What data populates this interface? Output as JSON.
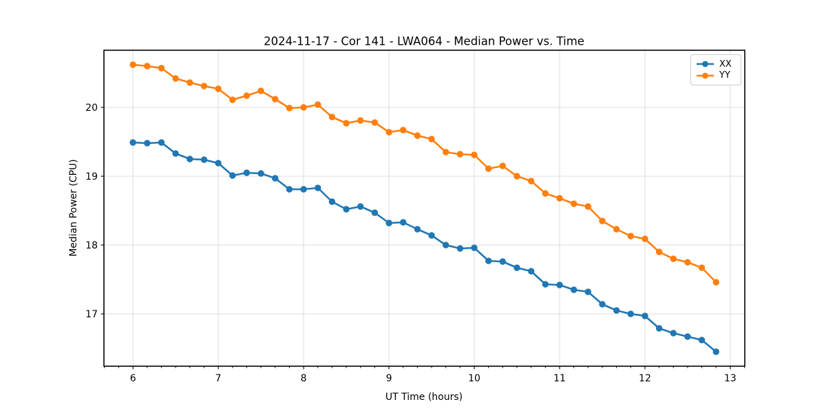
{
  "chart_data": {
    "type": "line",
    "title": "2024-11-17 - Cor 141 - LWA064 - Median Power vs. Time",
    "xlabel": "UT Time (hours)",
    "ylabel": "Median Power (CPU)",
    "xlim": [
      5.66,
      13.17
    ],
    "ylim": [
      16.24,
      20.83
    ],
    "xticks": [
      6,
      7,
      8,
      9,
      10,
      11,
      12,
      13
    ],
    "yticks": [
      17,
      18,
      19,
      20
    ],
    "x_minor_divisions_per_unit": 6,
    "grid": true,
    "legend_position": "upper right",
    "x": [
      6.0,
      6.1667,
      6.3333,
      6.5,
      6.6667,
      6.8333,
      7.0,
      7.1667,
      7.3333,
      7.5,
      7.6667,
      7.8333,
      8.0,
      8.1667,
      8.3333,
      8.5,
      8.6667,
      8.8333,
      9.0,
      9.1667,
      9.3333,
      9.5,
      9.6667,
      9.8333,
      10.0,
      10.1667,
      10.3333,
      10.5,
      10.6667,
      10.8333,
      11.0,
      11.1667,
      11.3333,
      11.5,
      11.6667,
      11.8333,
      12.0,
      12.1667,
      12.3333,
      12.5,
      12.6667,
      12.8333
    ],
    "series": [
      {
        "name": "XX",
        "color": "#1f77b4",
        "values": [
          19.49,
          19.48,
          19.49,
          19.33,
          19.25,
          19.24,
          19.19,
          19.01,
          19.05,
          19.04,
          18.97,
          18.81,
          18.81,
          18.83,
          18.63,
          18.52,
          18.56,
          18.47,
          18.32,
          18.33,
          18.23,
          18.14,
          18.0,
          17.95,
          17.96,
          17.77,
          17.76,
          17.67,
          17.62,
          17.43,
          17.42,
          17.35,
          17.32,
          17.14,
          17.05,
          17.0,
          16.97,
          16.79,
          16.72,
          16.67,
          16.62,
          16.45
        ]
      },
      {
        "name": "YY",
        "color": "#ff7f0e",
        "values": [
          20.62,
          20.6,
          20.57,
          20.42,
          20.36,
          20.31,
          20.27,
          20.11,
          20.17,
          20.24,
          20.12,
          19.99,
          20.0,
          20.04,
          19.86,
          19.77,
          19.81,
          19.78,
          19.64,
          19.67,
          19.59,
          19.54,
          19.35,
          19.32,
          19.31,
          19.11,
          19.15,
          19.0,
          18.93,
          18.75,
          18.68,
          18.6,
          18.56,
          18.35,
          18.23,
          18.13,
          18.09,
          17.9,
          17.8,
          17.75,
          17.67,
          17.46
        ]
      }
    ]
  }
}
